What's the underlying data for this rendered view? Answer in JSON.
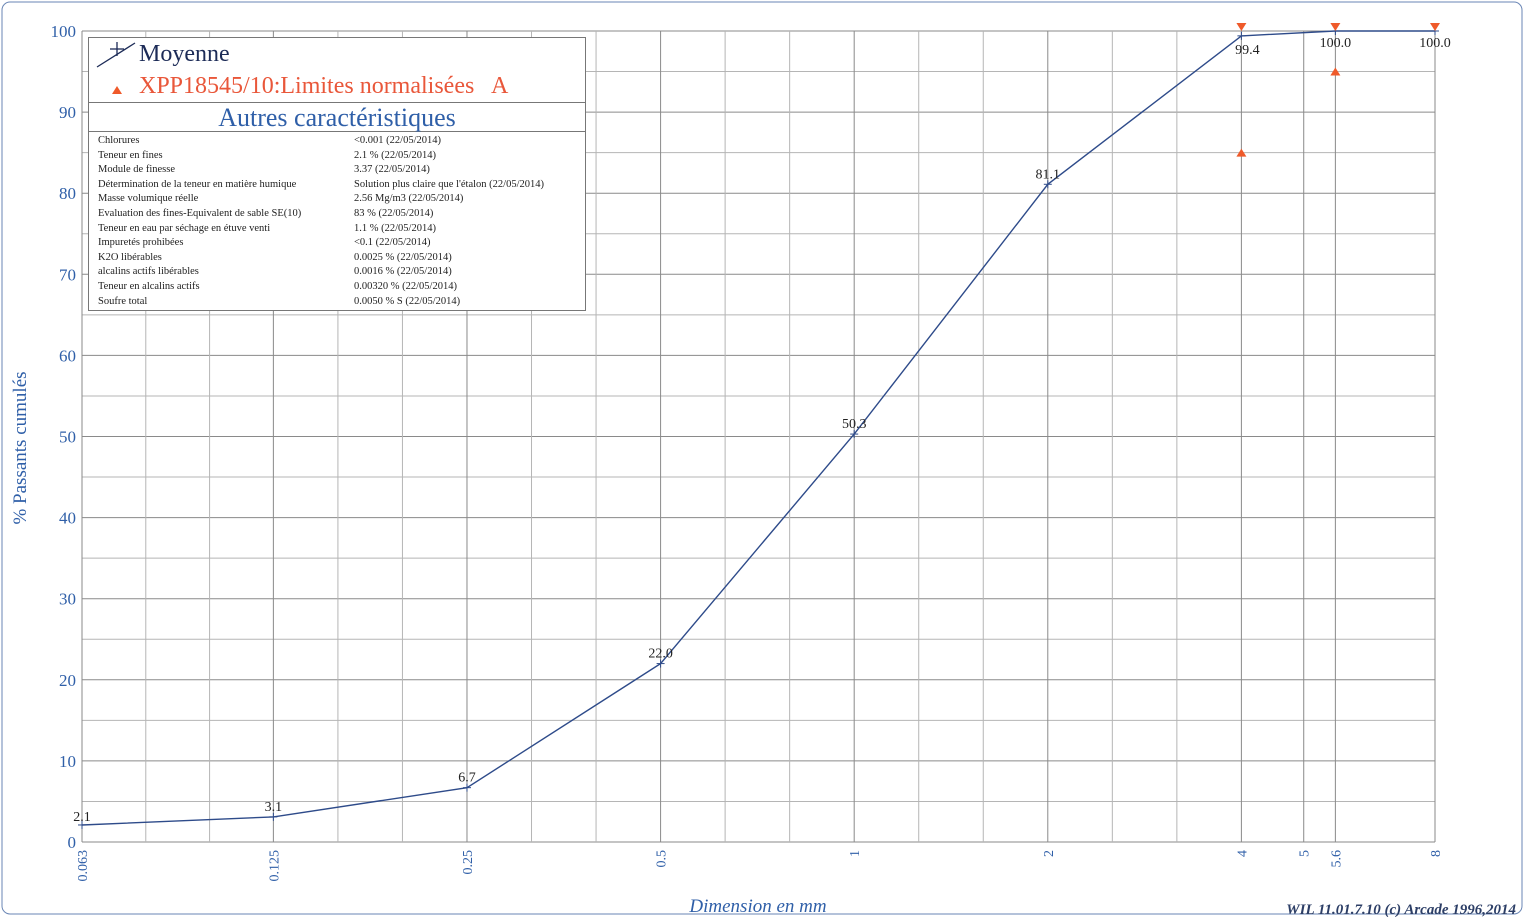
{
  "chart_data": {
    "type": "line",
    "xlabel": "Dimension en mm",
    "ylabel": "% Passants cumulés",
    "x_scale": "log",
    "xlim": [
      0.063,
      8
    ],
    "ylim": [
      0,
      100
    ],
    "y_ticks": [
      0,
      10,
      20,
      30,
      40,
      50,
      60,
      70,
      80,
      90,
      100
    ],
    "x_ticks": [
      {
        "value": 0.063,
        "label": "0.063"
      },
      {
        "value": 0.125,
        "label": "0.125"
      },
      {
        "value": 0.25,
        "label": "0.25"
      },
      {
        "value": 0.5,
        "label": "0.5"
      },
      {
        "value": 1,
        "label": "1"
      },
      {
        "value": 2,
        "label": "2"
      },
      {
        "value": 4,
        "label": "4"
      },
      {
        "value": 5,
        "label": "5"
      },
      {
        "value": 5.6,
        "label": "5.6"
      },
      {
        "value": 8,
        "label": "8"
      }
    ],
    "grid": true,
    "series": [
      {
        "name": "Moyenne",
        "color": "#2e4b8a",
        "points": [
          {
            "x": 0.063,
            "y": 2.1,
            "label": "2.1"
          },
          {
            "x": 0.125,
            "y": 3.1,
            "label": "3.1"
          },
          {
            "x": 0.25,
            "y": 6.7,
            "label": "6.7"
          },
          {
            "x": 0.5,
            "y": 22.0,
            "label": "22.0"
          },
          {
            "x": 1,
            "y": 50.3,
            "label": "50.3"
          },
          {
            "x": 2,
            "y": 81.1,
            "label": "81.1"
          },
          {
            "x": 4,
            "y": 99.4,
            "label": "99.4"
          },
          {
            "x": 5.6,
            "y": 100.0,
            "label": "100.0"
          },
          {
            "x": 8,
            "y": 100.0,
            "label": "100.0"
          }
        ]
      },
      {
        "name": "XPP18545/10:Limites normalisées   A",
        "color": "#ef5a2a",
        "upper_limits": [
          {
            "x": 4,
            "y": 100
          },
          {
            "x": 5.6,
            "y": 100
          },
          {
            "x": 8,
            "y": 100
          }
        ],
        "lower_limits": [
          {
            "x": 4,
            "y": 85
          },
          {
            "x": 5.6,
            "y": 95
          }
        ]
      }
    ],
    "legend_position": "top-left"
  },
  "legend": {
    "mean_label": "Moyenne",
    "limits_label": "XPP18545/10:Limites normalisées   A",
    "other_title": "Autres caractéristiques"
  },
  "properties": [
    {
      "name": "Chlorures",
      "value": "<0.001  (22/05/2014)"
    },
    {
      "name": "Teneur en fines",
      "value": "2.1 %  (22/05/2014)"
    },
    {
      "name": "Module de finesse",
      "value": "3.37  (22/05/2014)"
    },
    {
      "name": "Détermination de la teneur en matière humique",
      "value": "Solution plus claire que l'étalon  (22/05/2014)"
    },
    {
      "name": "Masse volumique réelle",
      "value": "2.56 Mg/m3  (22/05/2014)"
    },
    {
      "name": "Evaluation des fines-Equivalent de sable SE(10)",
      "value": "83 %  (22/05/2014)"
    },
    {
      "name": "Teneur en eau par séchage en étuve venti",
      "value": "1.1 %  (22/05/2014)"
    },
    {
      "name": "Impuretés prohibées",
      "value": "<0.1  (22/05/2014)"
    },
    {
      "name": "K2O libérables",
      "value": "0.0025 %  (22/05/2014)"
    },
    {
      "name": "alcalins actifs libérables",
      "value": "0.0016 %  (22/05/2014)"
    },
    {
      "name": "Teneur en alcalins actifs",
      "value": "0.00320 %  (22/05/2014)"
    },
    {
      "name": "Soufre total",
      "value": "0.0050 % S  (22/05/2014)"
    }
  ],
  "footer": "WIL 11.01.7.10 (c) Arcade 1996,2014",
  "colors": {
    "axis_text": "#2f5fa8",
    "mean_line": "#2e4b8a",
    "limits": "#ef5a2a"
  }
}
